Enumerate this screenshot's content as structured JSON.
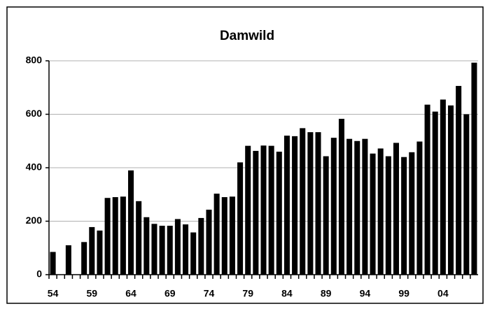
{
  "chart_data": {
    "type": "bar",
    "title": "Damwild",
    "categories": [
      "54",
      null,
      null,
      null,
      null,
      "59",
      null,
      null,
      null,
      null,
      "64",
      null,
      null,
      null,
      null,
      "69",
      null,
      null,
      null,
      null,
      "74",
      null,
      null,
      null,
      null,
      "79",
      null,
      null,
      null,
      null,
      "84",
      null,
      null,
      null,
      null,
      "89",
      null,
      null,
      null,
      null,
      "94",
      null,
      null,
      null,
      null,
      "99",
      null,
      null,
      null,
      null,
      "04",
      null,
      null,
      null,
      null
    ],
    "values": [
      85,
      null,
      110,
      null,
      122,
      178,
      165,
      287,
      290,
      292,
      390,
      275,
      215,
      190,
      183,
      183,
      208,
      188,
      158,
      212,
      243,
      303,
      290,
      292,
      420,
      482,
      463,
      483,
      482,
      460,
      520,
      518,
      548,
      533,
      533,
      443,
      512,
      583,
      508,
      500,
      508,
      453,
      472,
      443,
      493,
      440,
      458,
      498,
      636,
      610,
      655,
      633,
      706,
      600,
      793
    ],
    "color": "#000000",
    "ylim": [
      0,
      800
    ],
    "yticks": [
      0,
      200,
      400,
      600,
      800
    ],
    "grid": true
  }
}
